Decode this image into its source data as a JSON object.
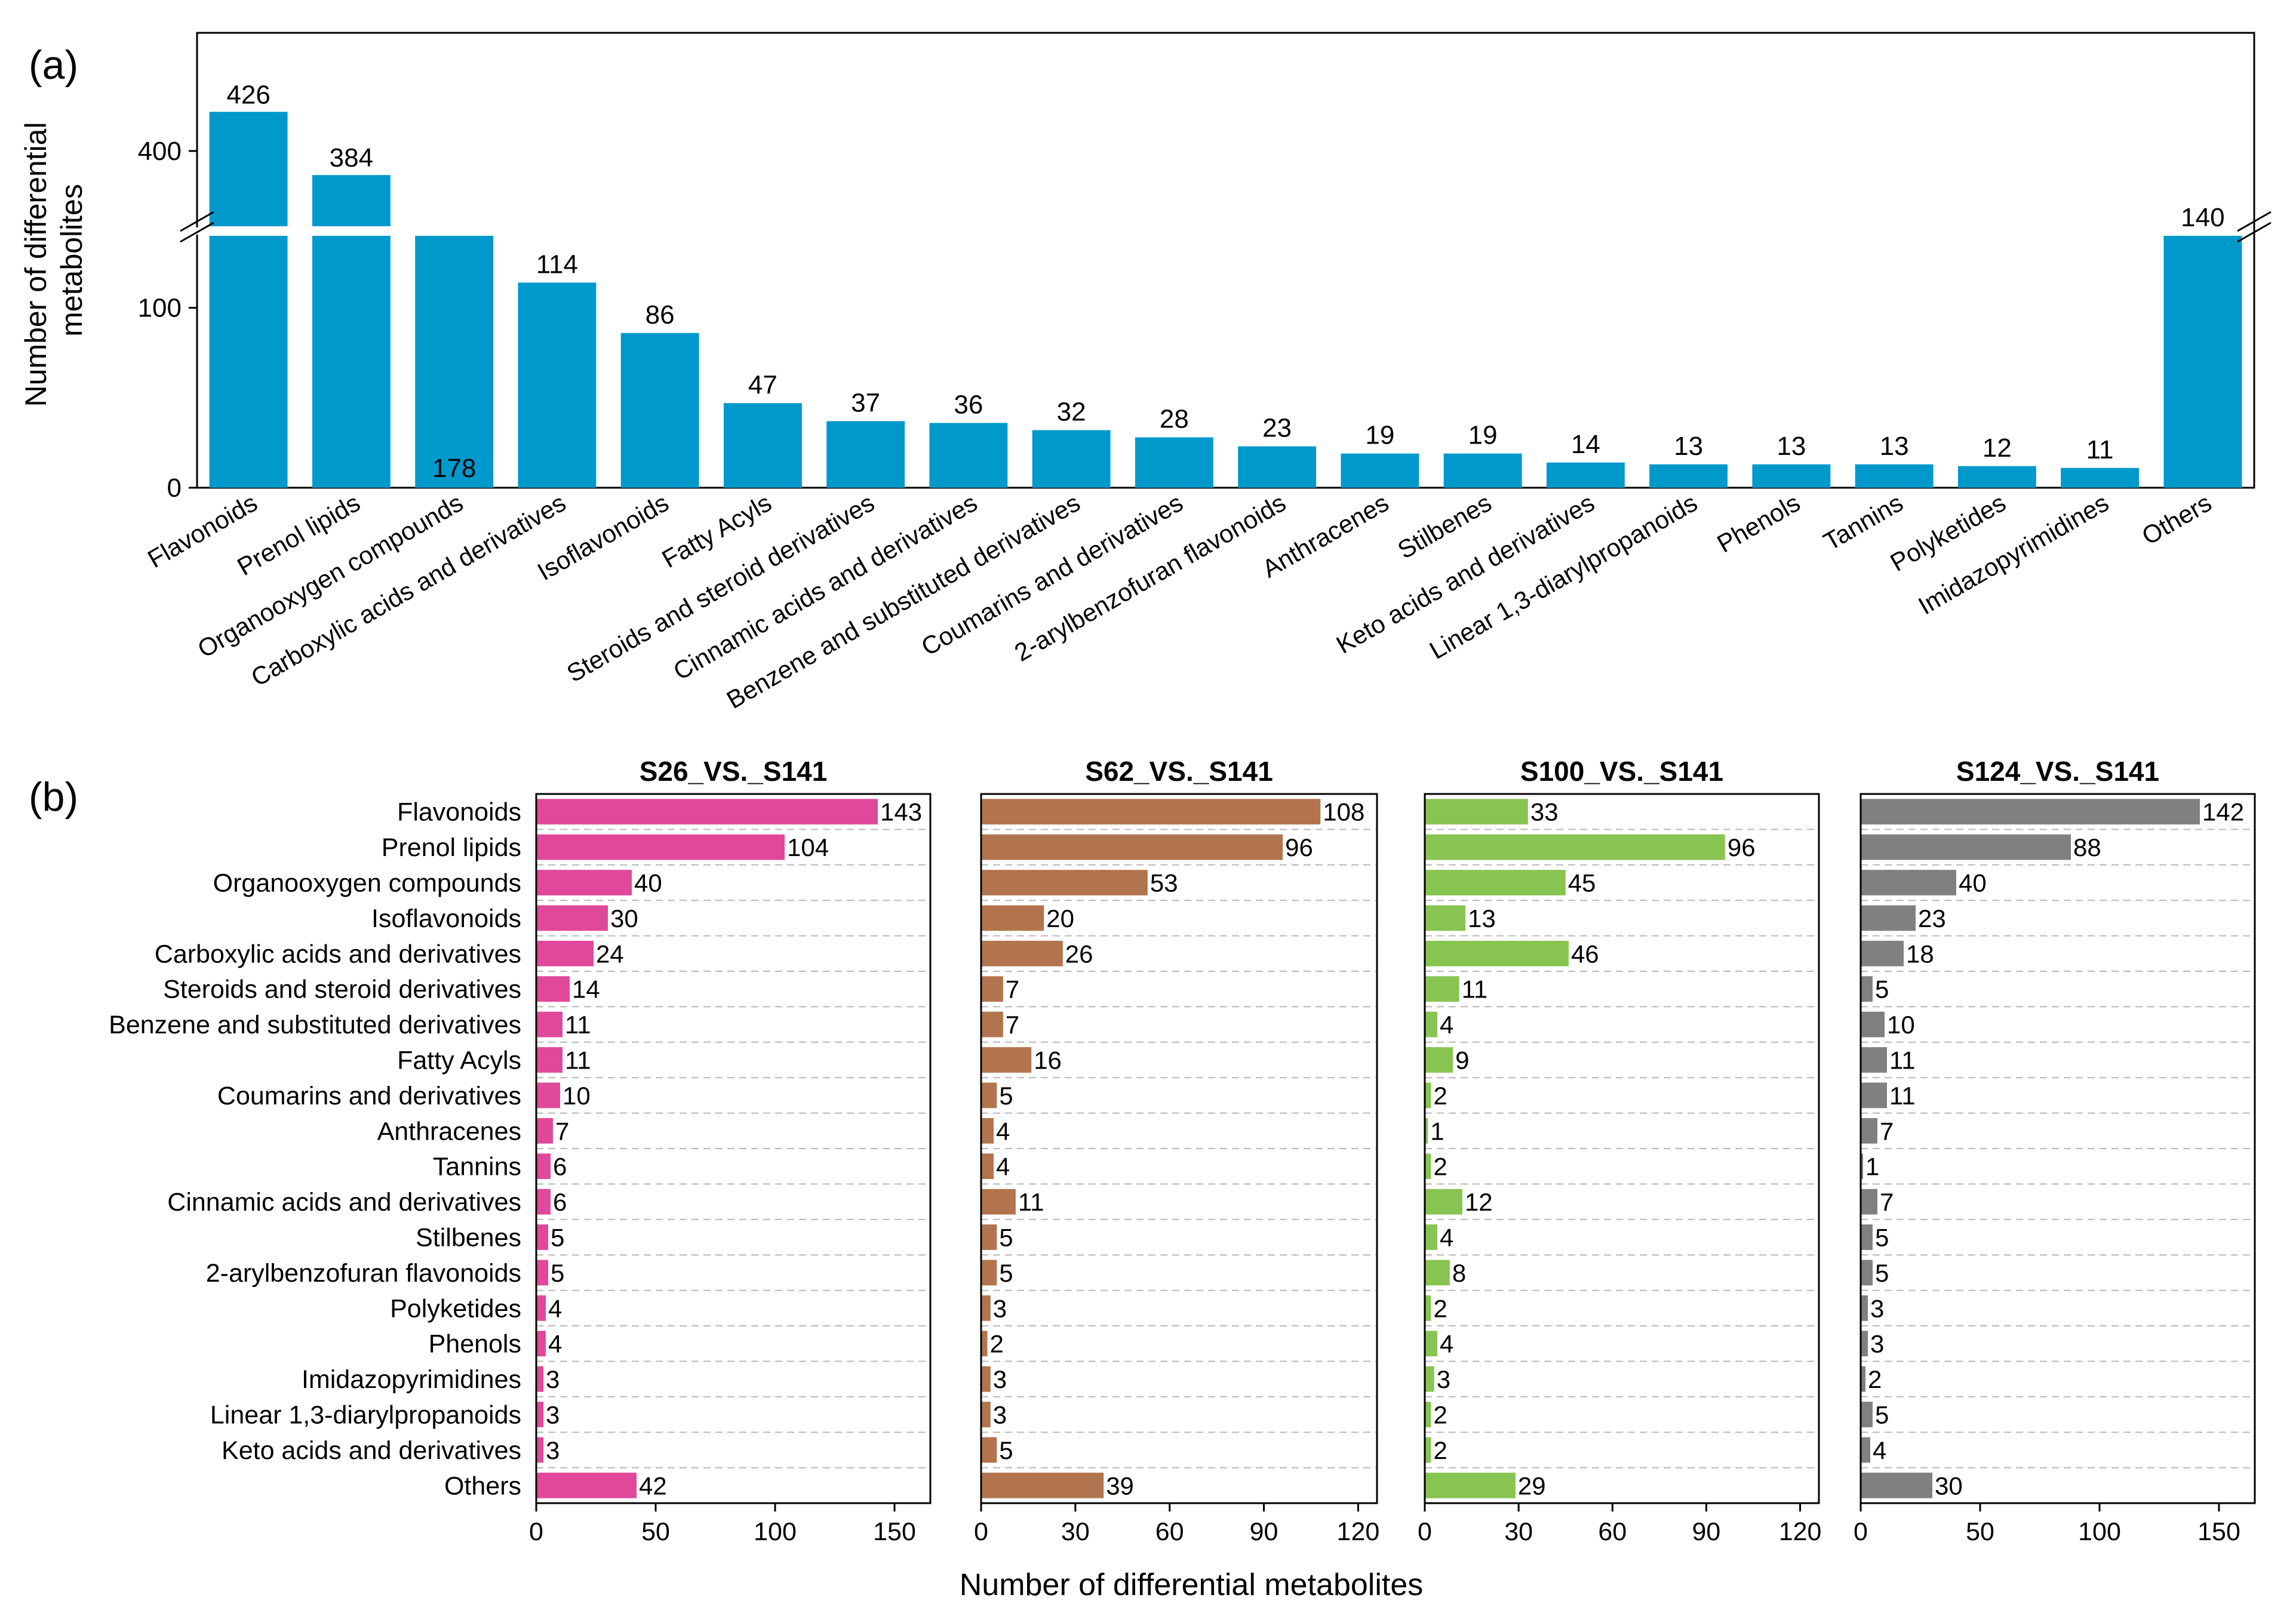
{
  "panel_labels": {
    "a": "(a)",
    "b": "(b)"
  },
  "chart_data": [
    {
      "type": "bar",
      "panel": "a",
      "title": "",
      "xlabel": "",
      "ylabel": "Number of differential metabolites",
      "ylabel_lines": [
        "Number of differential",
        "metabolites"
      ],
      "axis_break": {
        "lower": [
          0,
          140
        ],
        "upper": [
          350,
          440
        ]
      },
      "yticks": [
        0,
        100,
        400
      ],
      "colors": {
        "bar": "#0099CC"
      },
      "categories": [
        "Flavonoids",
        "Prenol lipids",
        "Organooxygen compounds",
        "Carboxylic acids and derivatives",
        "Isoflavonoids",
        "Fatty Acyls",
        "Steroids and steroid derivatives",
        "Cinnamic acids and derivatives",
        "Benzene and substituted derivatives",
        "Coumarins and derivatives",
        "2-arylbenzofuran flavonoids",
        "Anthracenes",
        "Stilbenes",
        "Keto acids and derivatives",
        "Linear 1,3-diarylpropanoids",
        "Phenols",
        "Tannins",
        "Polyketides",
        "Imidazopyrimidines",
        "Others"
      ],
      "values": [
        426,
        384,
        178,
        114,
        86,
        47,
        37,
        36,
        32,
        28,
        23,
        19,
        19,
        14,
        13,
        13,
        13,
        12,
        11,
        140
      ],
      "value_labels": [
        "426",
        "384",
        "178",
        "114",
        "86",
        "47",
        "37",
        "36",
        "32",
        "28",
        "23",
        "19",
        "19",
        "14",
        "13",
        "13",
        "13",
        "12",
        "11",
        "140"
      ]
    },
    {
      "type": "bar",
      "orientation": "horizontal",
      "panel": "b",
      "xlabel": "Number of differential metabolites",
      "categories": [
        "Flavonoids",
        "Prenol lipids",
        "Organooxygen compounds",
        "Isoflavonoids",
        "Carboxylic acids and derivatives",
        "Steroids and steroid derivatives",
        "Benzene and substituted derivatives",
        "Fatty Acyls",
        "Coumarins and derivatives",
        "Anthracenes",
        "Tannins",
        "Cinnamic acids and derivatives",
        "Stilbenes",
        "2-arylbenzofuran flavonoids",
        "Polyketides",
        "Phenols",
        "Imidazopyrimidines",
        "Linear 1,3-diarylpropanoids",
        "Keto acids and derivatives",
        "Others"
      ],
      "panels": [
        {
          "name": "S26_VS._S141",
          "color": "#E0489A",
          "xlim": [
            0,
            165
          ],
          "xticks": [
            0,
            50,
            100,
            150
          ],
          "values": [
            143,
            104,
            40,
            30,
            24,
            14,
            11,
            11,
            10,
            7,
            6,
            6,
            5,
            5,
            4,
            4,
            3,
            3,
            3,
            42
          ],
          "value_labels": [
            "143",
            "104",
            "40",
            "30",
            "24",
            "14",
            "11",
            "11",
            "10",
            "7",
            "6",
            "6",
            "5",
            "5",
            "4",
            "4",
            "3",
            "3",
            "3",
            "42"
          ]
        },
        {
          "name": "S62_VS._S141",
          "color": "#B2744E",
          "xlim": [
            0,
            126
          ],
          "xticks": [
            0,
            30,
            60,
            90,
            120
          ],
          "values": [
            108,
            96,
            53,
            20,
            26,
            7,
            7,
            16,
            5,
            4,
            4,
            11,
            5,
            5,
            3,
            2,
            3,
            3,
            5,
            39
          ],
          "value_labels": [
            "108",
            "96",
            "53",
            "20",
            "26",
            "7",
            "7",
            "16",
            "5",
            "4",
            "4",
            "11",
            "5",
            "5",
            "3",
            "2",
            "3",
            "3",
            "5",
            "39"
          ]
        },
        {
          "name": "S100_VS._S141",
          "color": "#88C452",
          "xlim": [
            0,
            126
          ],
          "xticks": [
            0,
            30,
            60,
            90,
            120
          ],
          "values": [
            33,
            96,
            45,
            13,
            46,
            11,
            4,
            9,
            2,
            1,
            2,
            12,
            4,
            8,
            2,
            4,
            3,
            2,
            2,
            29
          ],
          "value_labels": [
            "33",
            "96",
            "45",
            "13",
            "46",
            "11",
            "4",
            "9",
            "2",
            "1",
            "2",
            "12",
            "4",
            "8",
            "2",
            "4",
            "3",
            "2",
            "2",
            "29"
          ]
        },
        {
          "name": "S124_VS._S141",
          "color": "#808080",
          "xlim": [
            0,
            165
          ],
          "xticks": [
            0,
            50,
            100,
            150
          ],
          "values": [
            142,
            88,
            40,
            23,
            18,
            5,
            10,
            11,
            11,
            7,
            1,
            7,
            5,
            5,
            3,
            3,
            2,
            5,
            4,
            30
          ],
          "value_labels": [
            "142",
            "88",
            "40",
            "23",
            "18",
            "5",
            "10",
            "11",
            "11",
            "7",
            "1",
            "7",
            "5",
            "5",
            "3",
            "3",
            "2",
            "5",
            "4",
            "30"
          ]
        }
      ]
    }
  ]
}
